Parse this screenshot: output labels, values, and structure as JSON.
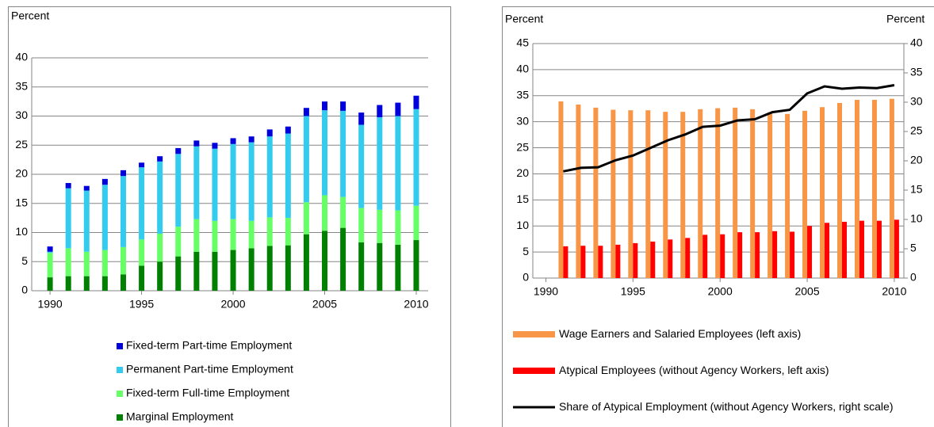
{
  "chart_data": [
    {
      "type": "bar",
      "stacked": true,
      "ylabel": "Percent",
      "x": [
        1990,
        1991,
        1992,
        1993,
        1994,
        1995,
        1996,
        1997,
        1998,
        1999,
        2000,
        2001,
        2002,
        2003,
        2004,
        2005,
        2006,
        2007,
        2008,
        2009,
        2010
      ],
      "xlim": [
        1989,
        2010.65
      ],
      "xticks": [
        1990,
        1995,
        2000,
        2005,
        2010
      ],
      "ylim": [
        0,
        40
      ],
      "yticks": [
        0,
        5,
        10,
        15,
        20,
        25,
        30,
        35,
        40
      ],
      "grid": true,
      "legend": "bottom",
      "series": [
        {
          "name": "Marginal Employment",
          "color": "#008000",
          "values": [
            2.3,
            2.5,
            2.5,
            2.5,
            2.8,
            4.3,
            5.0,
            5.9,
            6.7,
            6.7,
            7.0,
            7.3,
            7.7,
            7.8,
            9.7,
            10.3,
            10.8,
            8.3,
            8.2,
            7.9,
            8.7
          ]
        },
        {
          "name": "Fixed-term Full-time Employment",
          "color": "#66ff66",
          "values": [
            4.2,
            4.8,
            4.2,
            4.5,
            4.7,
            4.5,
            4.8,
            5.1,
            5.6,
            5.3,
            5.3,
            4.7,
            4.9,
            4.7,
            5.5,
            6.1,
            5.3,
            5.9,
            5.7,
            5.9,
            5.9
          ]
        },
        {
          "name": "Permanent Part-time Employment",
          "color": "#33ccee",
          "values": [
            0.2,
            10.3,
            10.5,
            11.2,
            12.2,
            12.4,
            12.4,
            12.5,
            12.5,
            12.4,
            12.9,
            13.5,
            13.9,
            14.5,
            14.8,
            14.6,
            14.8,
            14.3,
            15.9,
            16.2,
            16.6
          ]
        },
        {
          "name": "Fixed-term Part-time Employment",
          "color": "#0000dd",
          "values": [
            0.9,
            0.9,
            0.8,
            1.0,
            1.0,
            0.8,
            0.9,
            1.0,
            1.0,
            1.0,
            1.0,
            1.0,
            1.2,
            1.2,
            1.4,
            1.5,
            1.6,
            2.1,
            2.1,
            2.3,
            2.3
          ]
        }
      ]
    },
    {
      "type": "bar",
      "ylabel": "Percent",
      "y2label": "Percent",
      "x": [
        1991,
        1992,
        1993,
        1994,
        1995,
        1996,
        1997,
        1998,
        1999,
        2000,
        2001,
        2002,
        2003,
        2004,
        2005,
        2006,
        2007,
        2008,
        2009,
        2010
      ],
      "xlim": [
        1989.25,
        2010.55
      ],
      "xticks": [
        1990,
        1995,
        2000,
        2005,
        2010
      ],
      "ylim": [
        0,
        45
      ],
      "yticks": [
        0,
        5,
        10,
        15,
        20,
        25,
        30,
        35,
        40,
        45
      ],
      "y2lim": [
        0,
        40
      ],
      "y2ticks": [
        0,
        5,
        10,
        15,
        20,
        25,
        30,
        35,
        40
      ],
      "grid": true,
      "legend": "bottom",
      "series": [
        {
          "name": "Wage Earners and Salaried Employees (left axis)",
          "color": "#f79646",
          "values": [
            33.9,
            33.3,
            32.7,
            32.3,
            32.2,
            32.2,
            31.9,
            31.9,
            32.4,
            32.6,
            32.7,
            32.4,
            31.8,
            31.5,
            32.1,
            32.8,
            33.6,
            34.2,
            34.2,
            34.4
          ]
        },
        {
          "name": "Atypical Employees (without Agency Workers, left axis)",
          "color": "#ff0000",
          "values": [
            6.1,
            6.2,
            6.2,
            6.4,
            6.7,
            7.0,
            7.4,
            7.7,
            8.3,
            8.4,
            8.8,
            8.8,
            9.0,
            8.9,
            10.0,
            10.6,
            10.8,
            11.0,
            11.0,
            11.2
          ]
        },
        {
          "name": "Share of Atypical Employment (without Agency Workers, right scale)",
          "color": "#000000",
          "type": "line",
          "axis": "y2",
          "values": [
            18.2,
            18.8,
            18.9,
            20.1,
            20.9,
            22.2,
            23.5,
            24.5,
            25.8,
            26.0,
            26.9,
            27.1,
            28.3,
            28.7,
            31.5,
            32.7,
            32.3,
            32.5,
            32.4,
            32.9
          ]
        }
      ]
    }
  ]
}
